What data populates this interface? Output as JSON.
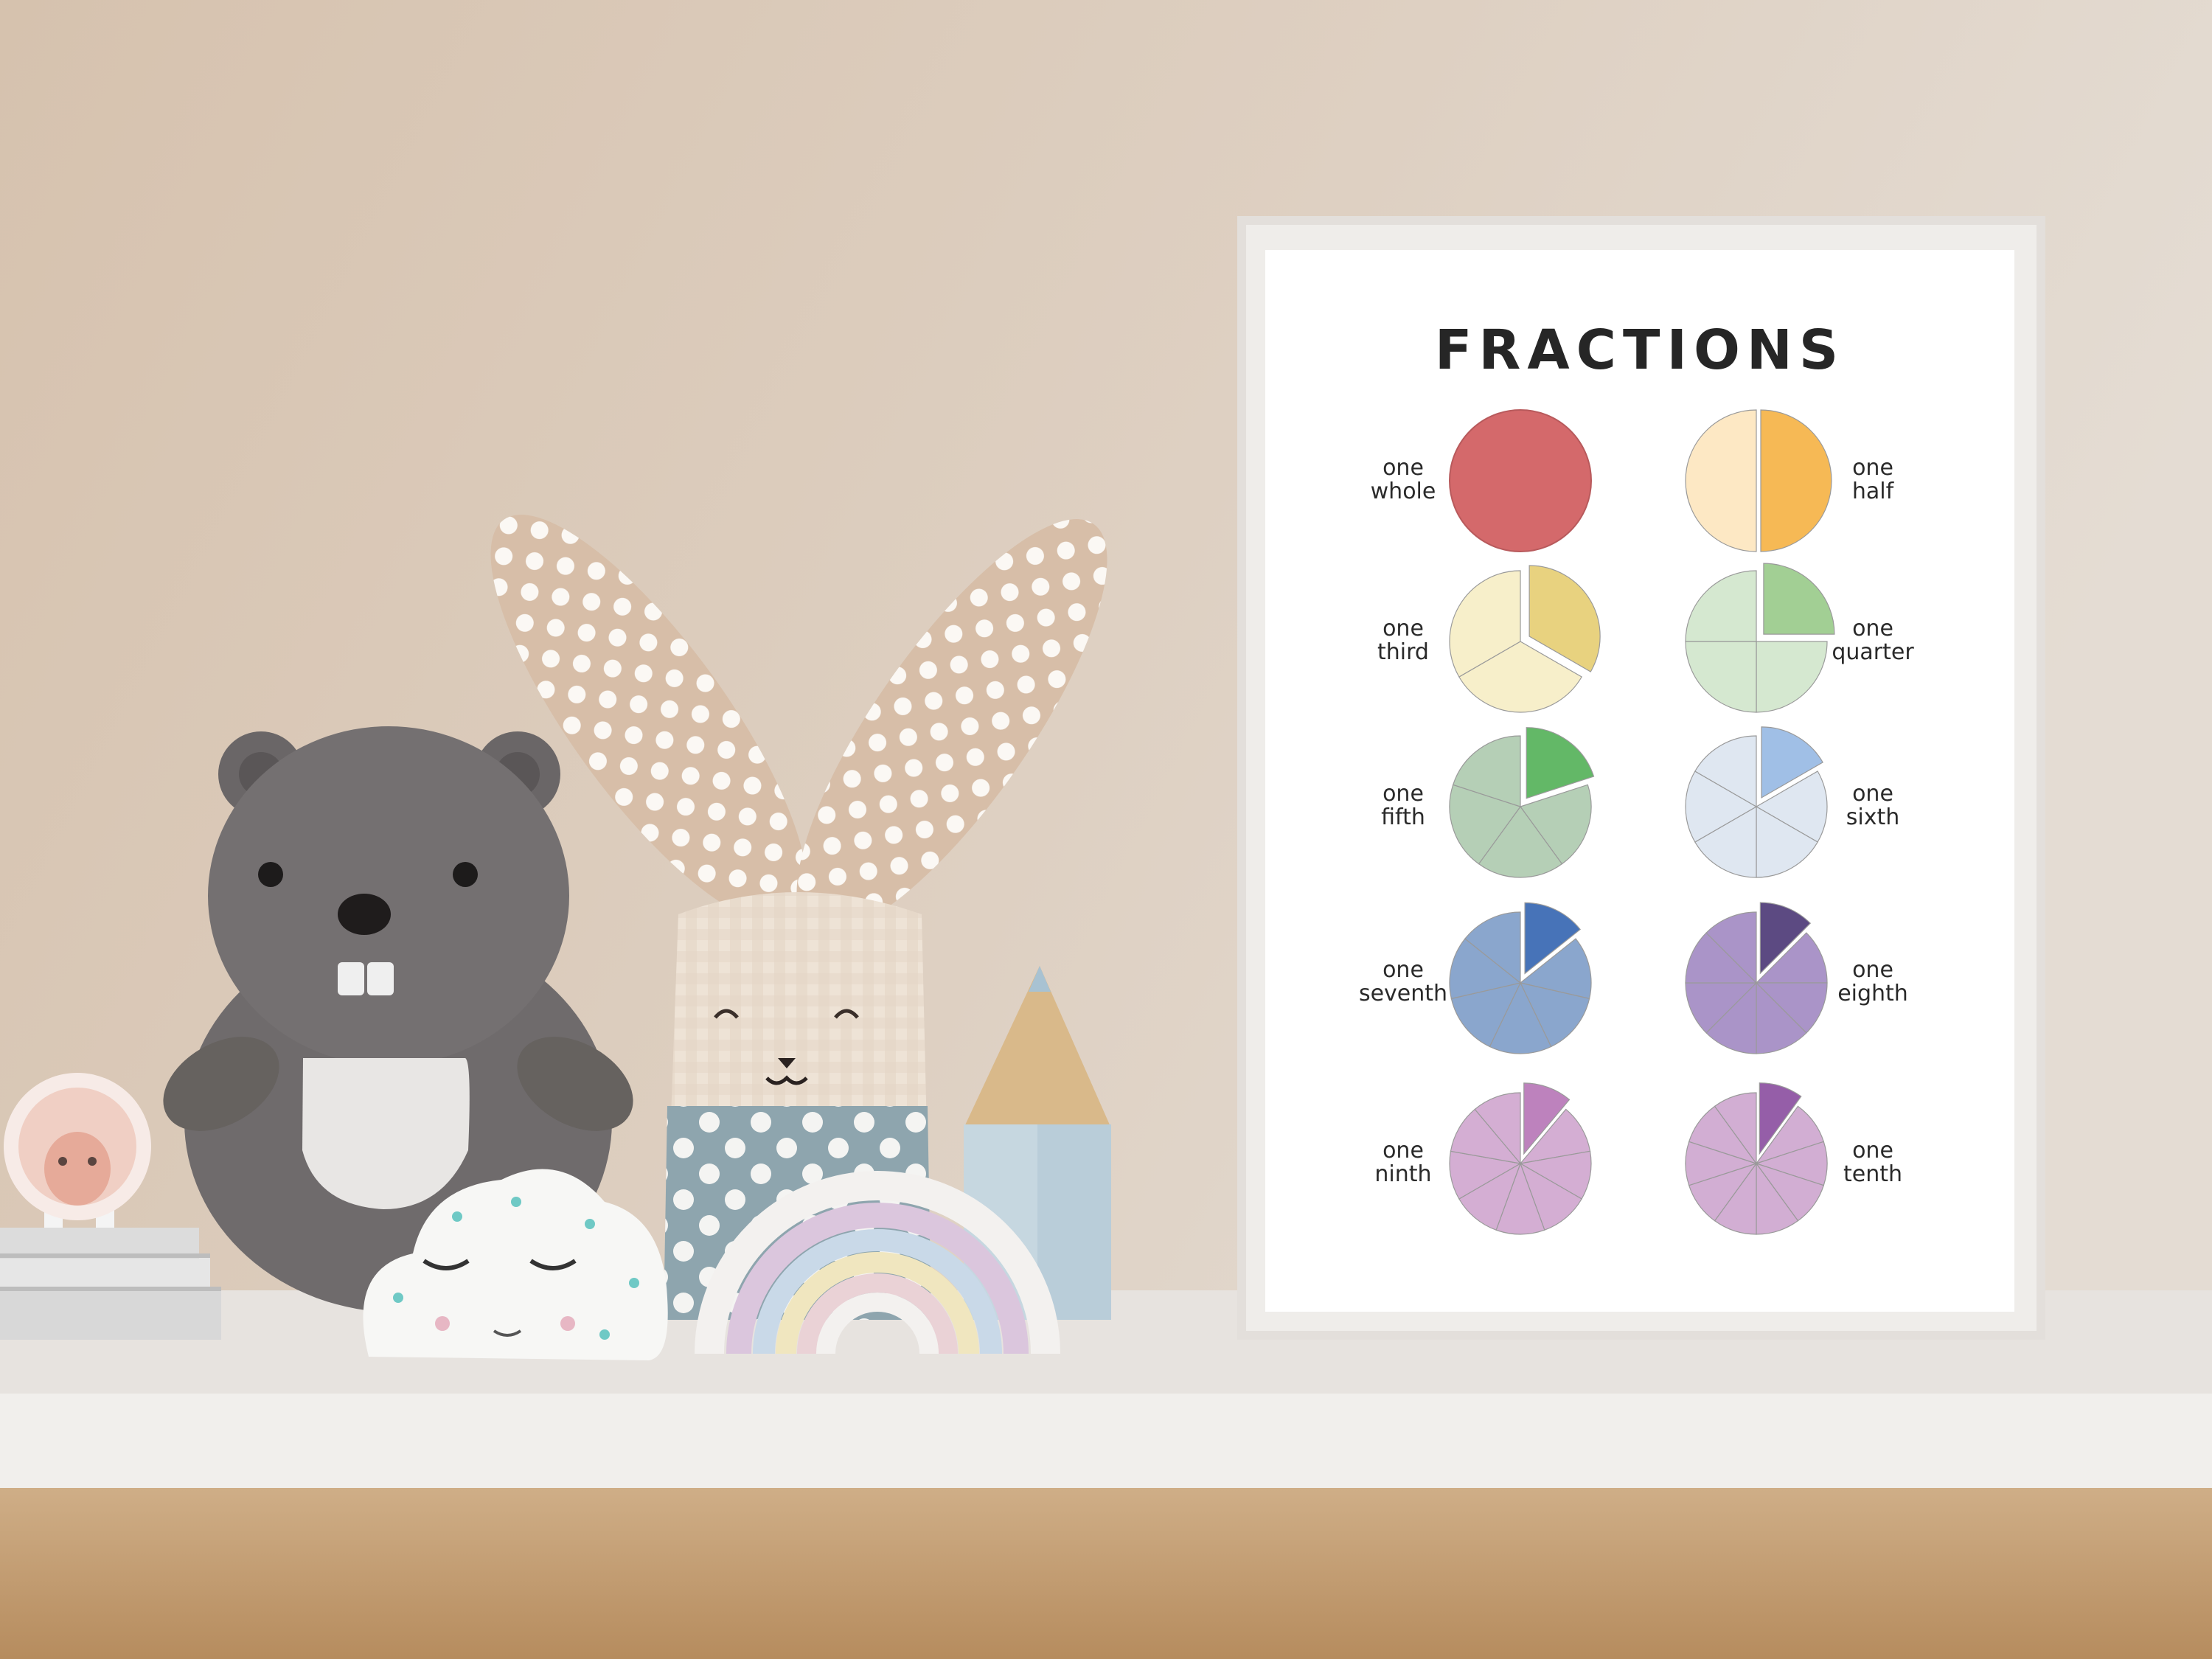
{
  "poster": {
    "title": "FRACTIONS",
    "pies": [
      {
        "line1": "one",
        "line2": "whole",
        "denominator": 1,
        "side": "left",
        "light": "#d4696b",
        "dark": "#d4696b"
      },
      {
        "line1": "one",
        "line2": "half",
        "denominator": 2,
        "side": "right",
        "light": "#fde8c4",
        "dark": "#f6b955"
      },
      {
        "line1": "one",
        "line2": "third",
        "denominator": 3,
        "side": "left",
        "light": "#f7efca",
        "dark": "#e8d27f"
      },
      {
        "line1": "one",
        "line2": "quarter",
        "denominator": 4,
        "side": "right",
        "light": "#d5e8d0",
        "dark": "#a2cf94"
      },
      {
        "line1": "one",
        "line2": "fifth",
        "denominator": 5,
        "side": "left",
        "light": "#b5cfb6",
        "dark": "#63b867"
      },
      {
        "line1": "one",
        "line2": "sixth",
        "denominator": 6,
        "side": "right",
        "light": "#dfe7f1",
        "dark": "#a0bfe6"
      },
      {
        "line1": "one",
        "line2": "seventh",
        "denominator": 7,
        "side": "left",
        "light": "#8aa6cd",
        "dark": "#4773b8"
      },
      {
        "line1": "one",
        "line2": "eighth",
        "denominator": 8,
        "side": "right",
        "light": "#aa94c8",
        "dark": "#5c4a82"
      },
      {
        "line1": "one",
        "line2": "ninth",
        "denominator": 9,
        "side": "left",
        "light": "#d4aed3",
        "dark": "#bd82bd"
      },
      {
        "line1": "one",
        "line2": "tenth",
        "denominator": 10,
        "side": "right",
        "light": "#d2aed3",
        "dark": "#955ea8"
      }
    ]
  },
  "colors": {
    "wall": "#d9c9b9",
    "shelf": "#ebe8e5",
    "frame": "#e4e0dc",
    "beaver": "#6e6a6b",
    "bunny_fabric": "#d9c1ab",
    "bunny_blue": "#8fa6b0"
  }
}
